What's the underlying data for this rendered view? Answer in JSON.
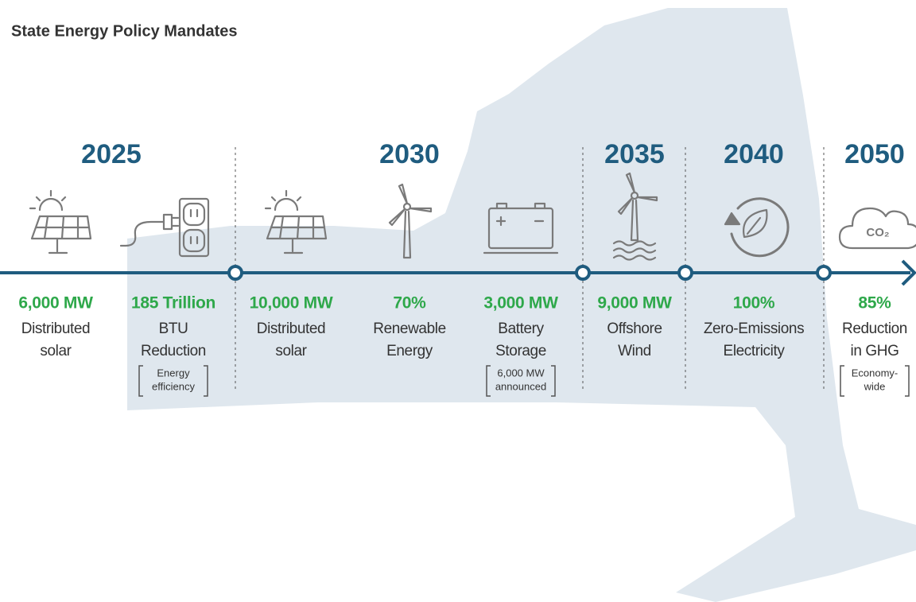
{
  "title": "State Energy Policy Mandates",
  "years": [
    "2025",
    "2030",
    "2035",
    "2040",
    "2050"
  ],
  "items": [
    {
      "value": "6,000 MW",
      "label": [
        "Distributed",
        "solar"
      ]
    },
    {
      "value": "185 Trillion",
      "label": [
        "BTU",
        "Reduction"
      ],
      "note": [
        "Energy",
        "efficiency"
      ]
    },
    {
      "value": "10,000 MW",
      "label": [
        "Distributed",
        "solar"
      ]
    },
    {
      "value": "70%",
      "label": [
        "Renewable",
        "Energy"
      ]
    },
    {
      "value": "3,000 MW",
      "label": [
        "Battery",
        "Storage"
      ],
      "note": [
        "6,000 MW",
        "announced"
      ]
    },
    {
      "value": "9,000 MW",
      "label": [
        "Offshore",
        "Wind"
      ]
    },
    {
      "value": "100%",
      "label": [
        "Zero-Emissions",
        "Electricity"
      ]
    },
    {
      "value": "85%",
      "label": [
        "Reduction",
        "in GHG"
      ],
      "note": [
        "Economy-",
        "wide"
      ]
    }
  ],
  "co2_label": "CO₂"
}
